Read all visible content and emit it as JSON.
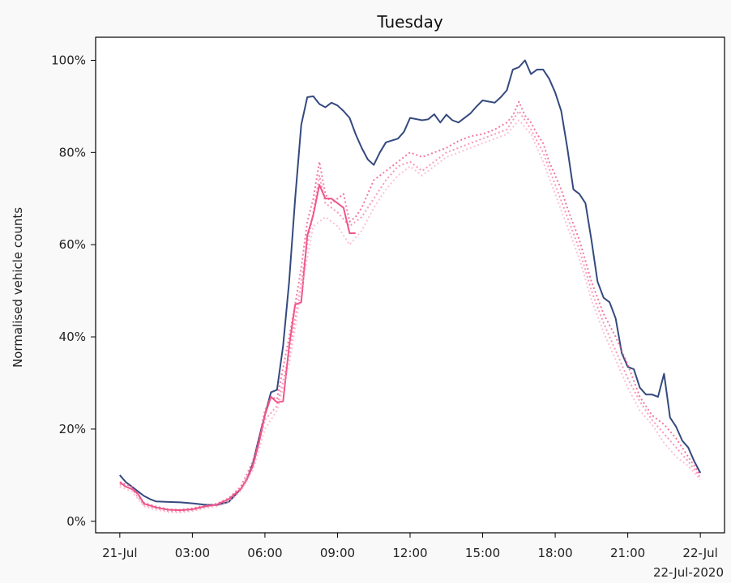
{
  "chart_data": {
    "type": "line",
    "title": "Tuesday",
    "ylabel": "Normalised vehicle counts",
    "xlabel": "",
    "x_unit": "hours",
    "xlim": [
      -1,
      25
    ],
    "ylim": [
      -2.5,
      105
    ],
    "grid": false,
    "x_ticks": [
      {
        "value": 0,
        "label": "21-Jul"
      },
      {
        "value": 3,
        "label": "03:00"
      },
      {
        "value": 6,
        "label": "06:00"
      },
      {
        "value": 9,
        "label": "09:00"
      },
      {
        "value": 12,
        "label": "12:00"
      },
      {
        "value": 15,
        "label": "15:00"
      },
      {
        "value": 18,
        "label": "18:00"
      },
      {
        "value": 21,
        "label": "21:00"
      },
      {
        "value": 24,
        "label": "22-Jul"
      }
    ],
    "x_offset_label": "22-Jul-2020",
    "y_ticks": [
      {
        "value": 0,
        "label": "0%"
      },
      {
        "value": 20,
        "label": "20%"
      },
      {
        "value": 40,
        "label": "40%"
      },
      {
        "value": 60,
        "label": "60%"
      },
      {
        "value": 80,
        "label": "80%"
      },
      {
        "value": 100,
        "label": "100%"
      }
    ],
    "series": [
      {
        "color": "#34497e",
        "style": "solid",
        "width": 2.0,
        "opacity": 1,
        "points": [
          [
            0,
            10
          ],
          [
            0.25,
            8.5
          ],
          [
            0.5,
            7.5
          ],
          [
            0.75,
            6.5
          ],
          [
            1,
            5.5
          ],
          [
            1.25,
            4.8
          ],
          [
            1.5,
            4.3
          ],
          [
            2,
            4.2
          ],
          [
            2.5,
            4.1
          ],
          [
            3,
            3.9
          ],
          [
            3.5,
            3.6
          ],
          [
            4,
            3.5
          ],
          [
            4.5,
            4.2
          ],
          [
            5,
            7
          ],
          [
            5.25,
            9
          ],
          [
            5.5,
            12.5
          ],
          [
            5.75,
            18
          ],
          [
            6,
            23
          ],
          [
            6.25,
            28
          ],
          [
            6.5,
            28.5
          ],
          [
            6.75,
            38
          ],
          [
            7,
            52
          ],
          [
            7.25,
            70
          ],
          [
            7.5,
            86
          ],
          [
            7.75,
            92
          ],
          [
            8,
            92.2
          ],
          [
            8.25,
            90.5
          ],
          [
            8.5,
            89.8
          ],
          [
            8.75,
            90.8
          ],
          [
            9,
            90.2
          ],
          [
            9.25,
            89
          ],
          [
            9.5,
            87.5
          ],
          [
            9.75,
            84
          ],
          [
            10,
            81
          ],
          [
            10.25,
            78.5
          ],
          [
            10.5,
            77.3
          ],
          [
            10.75,
            80
          ],
          [
            11,
            82.2
          ],
          [
            11.5,
            83
          ],
          [
            11.75,
            84.5
          ],
          [
            12,
            87.5
          ],
          [
            12.5,
            87
          ],
          [
            12.75,
            87.2
          ],
          [
            13,
            88.3
          ],
          [
            13.25,
            86.5
          ],
          [
            13.5,
            88.2
          ],
          [
            13.75,
            87
          ],
          [
            14,
            86.5
          ],
          [
            14.5,
            88.5
          ],
          [
            14.75,
            90
          ],
          [
            15,
            91.3
          ],
          [
            15.5,
            90.8
          ],
          [
            15.75,
            92
          ],
          [
            16,
            93.5
          ],
          [
            16.25,
            98
          ],
          [
            16.5,
            98.5
          ],
          [
            16.75,
            100
          ],
          [
            17,
            97
          ],
          [
            17.25,
            98
          ],
          [
            17.5,
            98
          ],
          [
            17.75,
            96
          ],
          [
            18,
            93
          ],
          [
            18.25,
            89
          ],
          [
            18.5,
            81
          ],
          [
            18.75,
            72
          ],
          [
            19,
            71
          ],
          [
            19.25,
            69
          ],
          [
            19.5,
            61
          ],
          [
            19.75,
            52
          ],
          [
            20,
            48.5
          ],
          [
            20.25,
            47.5
          ],
          [
            20.5,
            44
          ],
          [
            20.75,
            36.5
          ],
          [
            21,
            33.5
          ],
          [
            21.25,
            33
          ],
          [
            21.5,
            29
          ],
          [
            21.75,
            27.5
          ],
          [
            22,
            27.5
          ],
          [
            22.25,
            27
          ],
          [
            22.5,
            32
          ],
          [
            22.75,
            22.5
          ],
          [
            23,
            20.5
          ],
          [
            23.25,
            17.5
          ],
          [
            23.5,
            16
          ],
          [
            23.75,
            13
          ],
          [
            24,
            10.5
          ]
        ]
      },
      {
        "color": "#f0558a",
        "style": "solid",
        "width": 2.0,
        "opacity": 1,
        "points": [
          [
            0,
            8.5
          ],
          [
            0.25,
            7.5
          ],
          [
            0.5,
            7
          ],
          [
            0.75,
            6
          ],
          [
            1,
            3.8
          ],
          [
            1.5,
            3
          ],
          [
            2,
            2.5
          ],
          [
            2.5,
            2.4
          ],
          [
            3,
            2.6
          ],
          [
            3.5,
            3.2
          ],
          [
            4,
            3.6
          ],
          [
            4.5,
            4.8
          ],
          [
            5,
            7
          ],
          [
            5.25,
            9
          ],
          [
            5.5,
            12
          ],
          [
            5.75,
            17
          ],
          [
            6,
            23
          ],
          [
            6.25,
            27
          ],
          [
            6.5,
            25.8
          ],
          [
            6.75,
            26
          ],
          [
            7,
            38
          ],
          [
            7.25,
            47
          ],
          [
            7.5,
            47.5
          ],
          [
            7.75,
            62
          ],
          [
            8,
            66.5
          ],
          [
            8.25,
            73
          ],
          [
            8.5,
            70
          ],
          [
            8.75,
            70
          ],
          [
            9,
            69
          ],
          [
            9.25,
            68
          ],
          [
            9.5,
            62.5
          ],
          [
            9.75,
            62.5
          ]
        ]
      },
      {
        "color": "#f0558a",
        "style": "dotted",
        "width": 2.0,
        "opacity": 0.8,
        "points": [
          [
            0,
            8.5
          ],
          [
            0.5,
            7.5
          ],
          [
            1,
            4
          ],
          [
            1.5,
            3.2
          ],
          [
            2,
            2.6
          ],
          [
            2.5,
            2.5
          ],
          [
            3,
            2.8
          ],
          [
            3.5,
            3.4
          ],
          [
            4,
            3.8
          ],
          [
            4.5,
            5
          ],
          [
            5,
            7.5
          ],
          [
            5.5,
            13
          ],
          [
            5.75,
            18
          ],
          [
            6,
            24
          ],
          [
            6.25,
            27
          ],
          [
            6.5,
            26.5
          ],
          [
            7,
            40
          ],
          [
            7.25,
            47
          ],
          [
            7.5,
            55
          ],
          [
            7.75,
            65
          ],
          [
            8,
            70
          ],
          [
            8.25,
            78
          ],
          [
            8.5,
            71
          ],
          [
            8.75,
            69
          ],
          [
            9,
            70
          ],
          [
            9.25,
            71
          ],
          [
            9.5,
            65
          ],
          [
            9.75,
            66
          ],
          [
            10,
            68
          ],
          [
            10.25,
            71
          ],
          [
            10.5,
            74
          ],
          [
            11,
            76
          ],
          [
            11.5,
            78
          ],
          [
            12,
            80
          ],
          [
            12.5,
            79
          ],
          [
            13,
            80
          ],
          [
            13.5,
            81
          ],
          [
            14,
            82.5
          ],
          [
            14.5,
            83.5
          ],
          [
            15,
            84
          ],
          [
            15.5,
            85
          ],
          [
            16,
            86.5
          ],
          [
            16.25,
            88
          ],
          [
            16.5,
            91
          ],
          [
            16.75,
            88
          ],
          [
            17,
            86.5
          ],
          [
            17.25,
            84
          ],
          [
            17.5,
            82
          ],
          [
            17.75,
            78
          ],
          [
            18,
            75
          ],
          [
            18.25,
            72
          ],
          [
            18.5,
            68
          ],
          [
            19,
            61
          ],
          [
            19.5,
            52
          ],
          [
            20,
            45
          ],
          [
            20.5,
            40
          ],
          [
            21,
            34
          ],
          [
            21.5,
            27
          ],
          [
            22,
            23
          ],
          [
            22.5,
            21
          ],
          [
            23,
            18
          ],
          [
            23.5,
            14
          ],
          [
            24,
            10
          ]
        ]
      },
      {
        "color": "#f0558a",
        "style": "dotted",
        "width": 2.0,
        "opacity": 0.6,
        "points": [
          [
            0,
            8
          ],
          [
            0.5,
            7
          ],
          [
            1,
            3.5
          ],
          [
            1.5,
            2.8
          ],
          [
            2,
            2.2
          ],
          [
            2.5,
            2.1
          ],
          [
            3,
            2.4
          ],
          [
            3.5,
            3
          ],
          [
            4,
            3.5
          ],
          [
            4.5,
            4.5
          ],
          [
            5,
            7
          ],
          [
            5.5,
            12
          ],
          [
            6,
            22
          ],
          [
            6.5,
            25
          ],
          [
            7,
            36
          ],
          [
            7.5,
            52
          ],
          [
            7.75,
            60
          ],
          [
            8,
            67
          ],
          [
            8.25,
            75
          ],
          [
            8.5,
            69
          ],
          [
            9,
            67
          ],
          [
            9.5,
            64
          ],
          [
            10,
            66
          ],
          [
            10.5,
            70
          ],
          [
            11,
            74
          ],
          [
            11.5,
            77
          ],
          [
            12,
            78
          ],
          [
            12.5,
            76
          ],
          [
            13,
            78
          ],
          [
            13.5,
            80
          ],
          [
            14,
            81
          ],
          [
            14.5,
            82
          ],
          [
            15,
            83
          ],
          [
            15.5,
            84
          ],
          [
            16,
            85
          ],
          [
            16.5,
            89
          ],
          [
            17,
            85
          ],
          [
            17.5,
            80
          ],
          [
            18,
            73
          ],
          [
            18.5,
            66
          ],
          [
            19,
            59
          ],
          [
            19.5,
            50
          ],
          [
            20,
            43
          ],
          [
            20.5,
            37
          ],
          [
            21,
            31
          ],
          [
            21.5,
            26
          ],
          [
            22,
            22
          ],
          [
            22.5,
            19
          ],
          [
            23,
            16
          ],
          [
            23.5,
            13
          ],
          [
            24,
            9.5
          ]
        ]
      },
      {
        "color": "#f7a8c4",
        "style": "dotted",
        "width": 2.0,
        "opacity": 0.7,
        "points": [
          [
            0,
            7.5
          ],
          [
            0.5,
            6.5
          ],
          [
            1,
            3.2
          ],
          [
            1.5,
            2.5
          ],
          [
            2,
            2
          ],
          [
            2.5,
            1.9
          ],
          [
            3,
            2.2
          ],
          [
            3.5,
            2.8
          ],
          [
            4,
            3.2
          ],
          [
            4.5,
            4.2
          ],
          [
            5,
            6.5
          ],
          [
            5.5,
            11
          ],
          [
            6,
            20
          ],
          [
            6.5,
            24
          ],
          [
            7,
            34
          ],
          [
            7.5,
            50
          ],
          [
            8,
            64
          ],
          [
            8.5,
            66
          ],
          [
            9,
            64
          ],
          [
            9.5,
            60
          ],
          [
            10,
            63
          ],
          [
            10.5,
            68
          ],
          [
            11,
            72
          ],
          [
            11.5,
            75
          ],
          [
            12,
            77
          ],
          [
            12.5,
            75
          ],
          [
            13,
            77
          ],
          [
            13.5,
            79
          ],
          [
            14,
            80
          ],
          [
            14.5,
            81
          ],
          [
            15,
            82
          ],
          [
            15.5,
            83
          ],
          [
            16,
            84
          ],
          [
            16.5,
            87
          ],
          [
            17,
            84
          ],
          [
            17.5,
            78
          ],
          [
            18,
            71
          ],
          [
            18.5,
            64
          ],
          [
            19,
            57
          ],
          [
            19.5,
            48
          ],
          [
            20,
            41
          ],
          [
            20.5,
            35
          ],
          [
            21,
            29
          ],
          [
            21.5,
            24
          ],
          [
            22,
            21
          ],
          [
            22.5,
            17
          ],
          [
            23,
            14
          ],
          [
            23.5,
            12
          ],
          [
            24,
            9
          ]
        ]
      }
    ]
  }
}
